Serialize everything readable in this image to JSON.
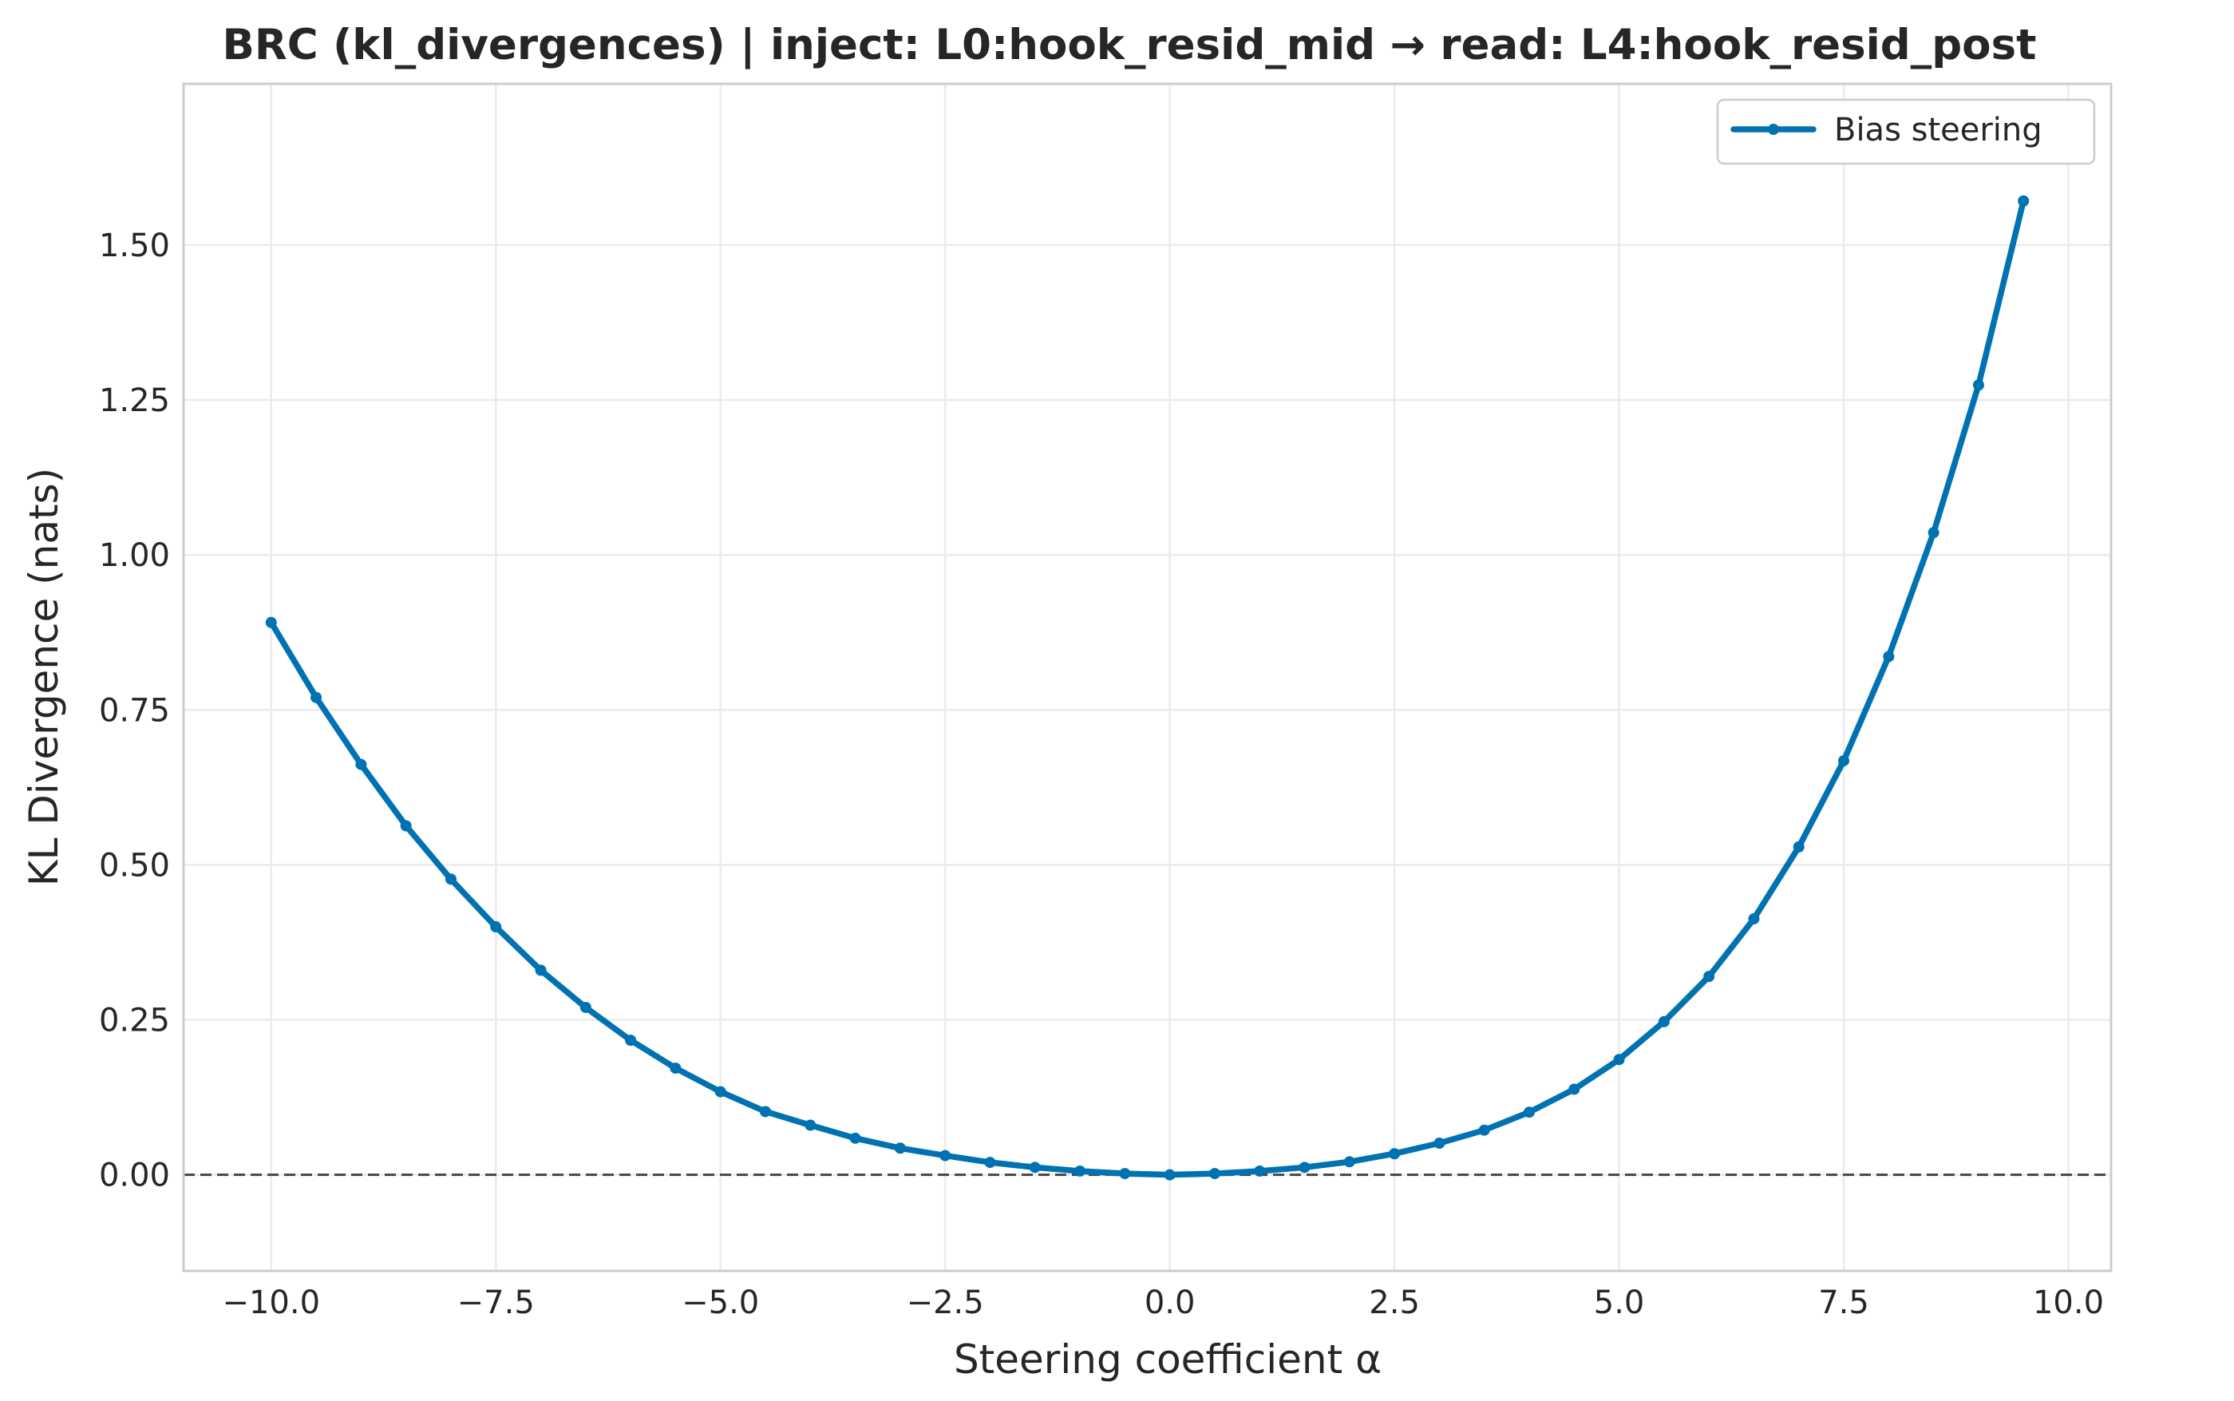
{
  "chart_data": {
    "type": "line",
    "title": "BRC (kl_divergences) | inject: L0:hook_resid_mid → read: L4:hook_resid_post",
    "xlabel": "Steering coefficient α",
    "ylabel": "KL Divergence (nats)",
    "xlim": [
      -10.975,
      10.475
    ],
    "ylim": [
      -0.155,
      1.76
    ],
    "x_ticks": [
      -10.0,
      -7.5,
      -5.0,
      -2.5,
      0.0,
      2.5,
      5.0,
      7.5,
      10.0
    ],
    "x_tick_labels": [
      "−10.0",
      "−7.5",
      "−5.0",
      "−2.5",
      "0.0",
      "2.5",
      "5.0",
      "7.5",
      "10.0"
    ],
    "y_ticks": [
      0.0,
      0.25,
      0.5,
      0.75,
      1.0,
      1.25,
      1.5
    ],
    "y_tick_labels": [
      "0.00",
      "0.25",
      "0.50",
      "0.75",
      "1.00",
      "1.25",
      "1.50"
    ],
    "grid": true,
    "legend_position": "top-right",
    "reference_line": {
      "y": 0.0,
      "style": "dashed",
      "color": "#444444"
    },
    "series": [
      {
        "name": "Bias steering",
        "color": "#0072b2",
        "x": [
          -10.0,
          -9.5,
          -9.0,
          -8.5,
          -8.0,
          -7.5,
          -7.0,
          -6.5,
          -6.0,
          -5.5,
          -5.0,
          -4.5,
          -4.0,
          -3.5,
          -3.0,
          -2.5,
          -2.0,
          -1.5,
          -1.0,
          -0.5,
          0.0,
          0.5,
          1.0,
          1.5,
          2.0,
          2.5,
          3.0,
          3.5,
          4.0,
          4.5,
          5.0,
          5.5,
          6.0,
          6.5,
          7.0,
          7.5,
          8.0,
          8.5,
          9.0,
          9.5
        ],
        "y": [
          0.891,
          0.77,
          0.662,
          0.563,
          0.477,
          0.4,
          0.33,
          0.27,
          0.217,
          0.172,
          0.134,
          0.102,
          0.08,
          0.059,
          0.043,
          0.031,
          0.02,
          0.012,
          0.006,
          0.002,
          0.0,
          0.002,
          0.006,
          0.012,
          0.021,
          0.034,
          0.051,
          0.072,
          0.101,
          0.138,
          0.186,
          0.247,
          0.32,
          0.413,
          0.529,
          0.668,
          0.836,
          1.036,
          1.274,
          1.571
        ]
      }
    ]
  }
}
